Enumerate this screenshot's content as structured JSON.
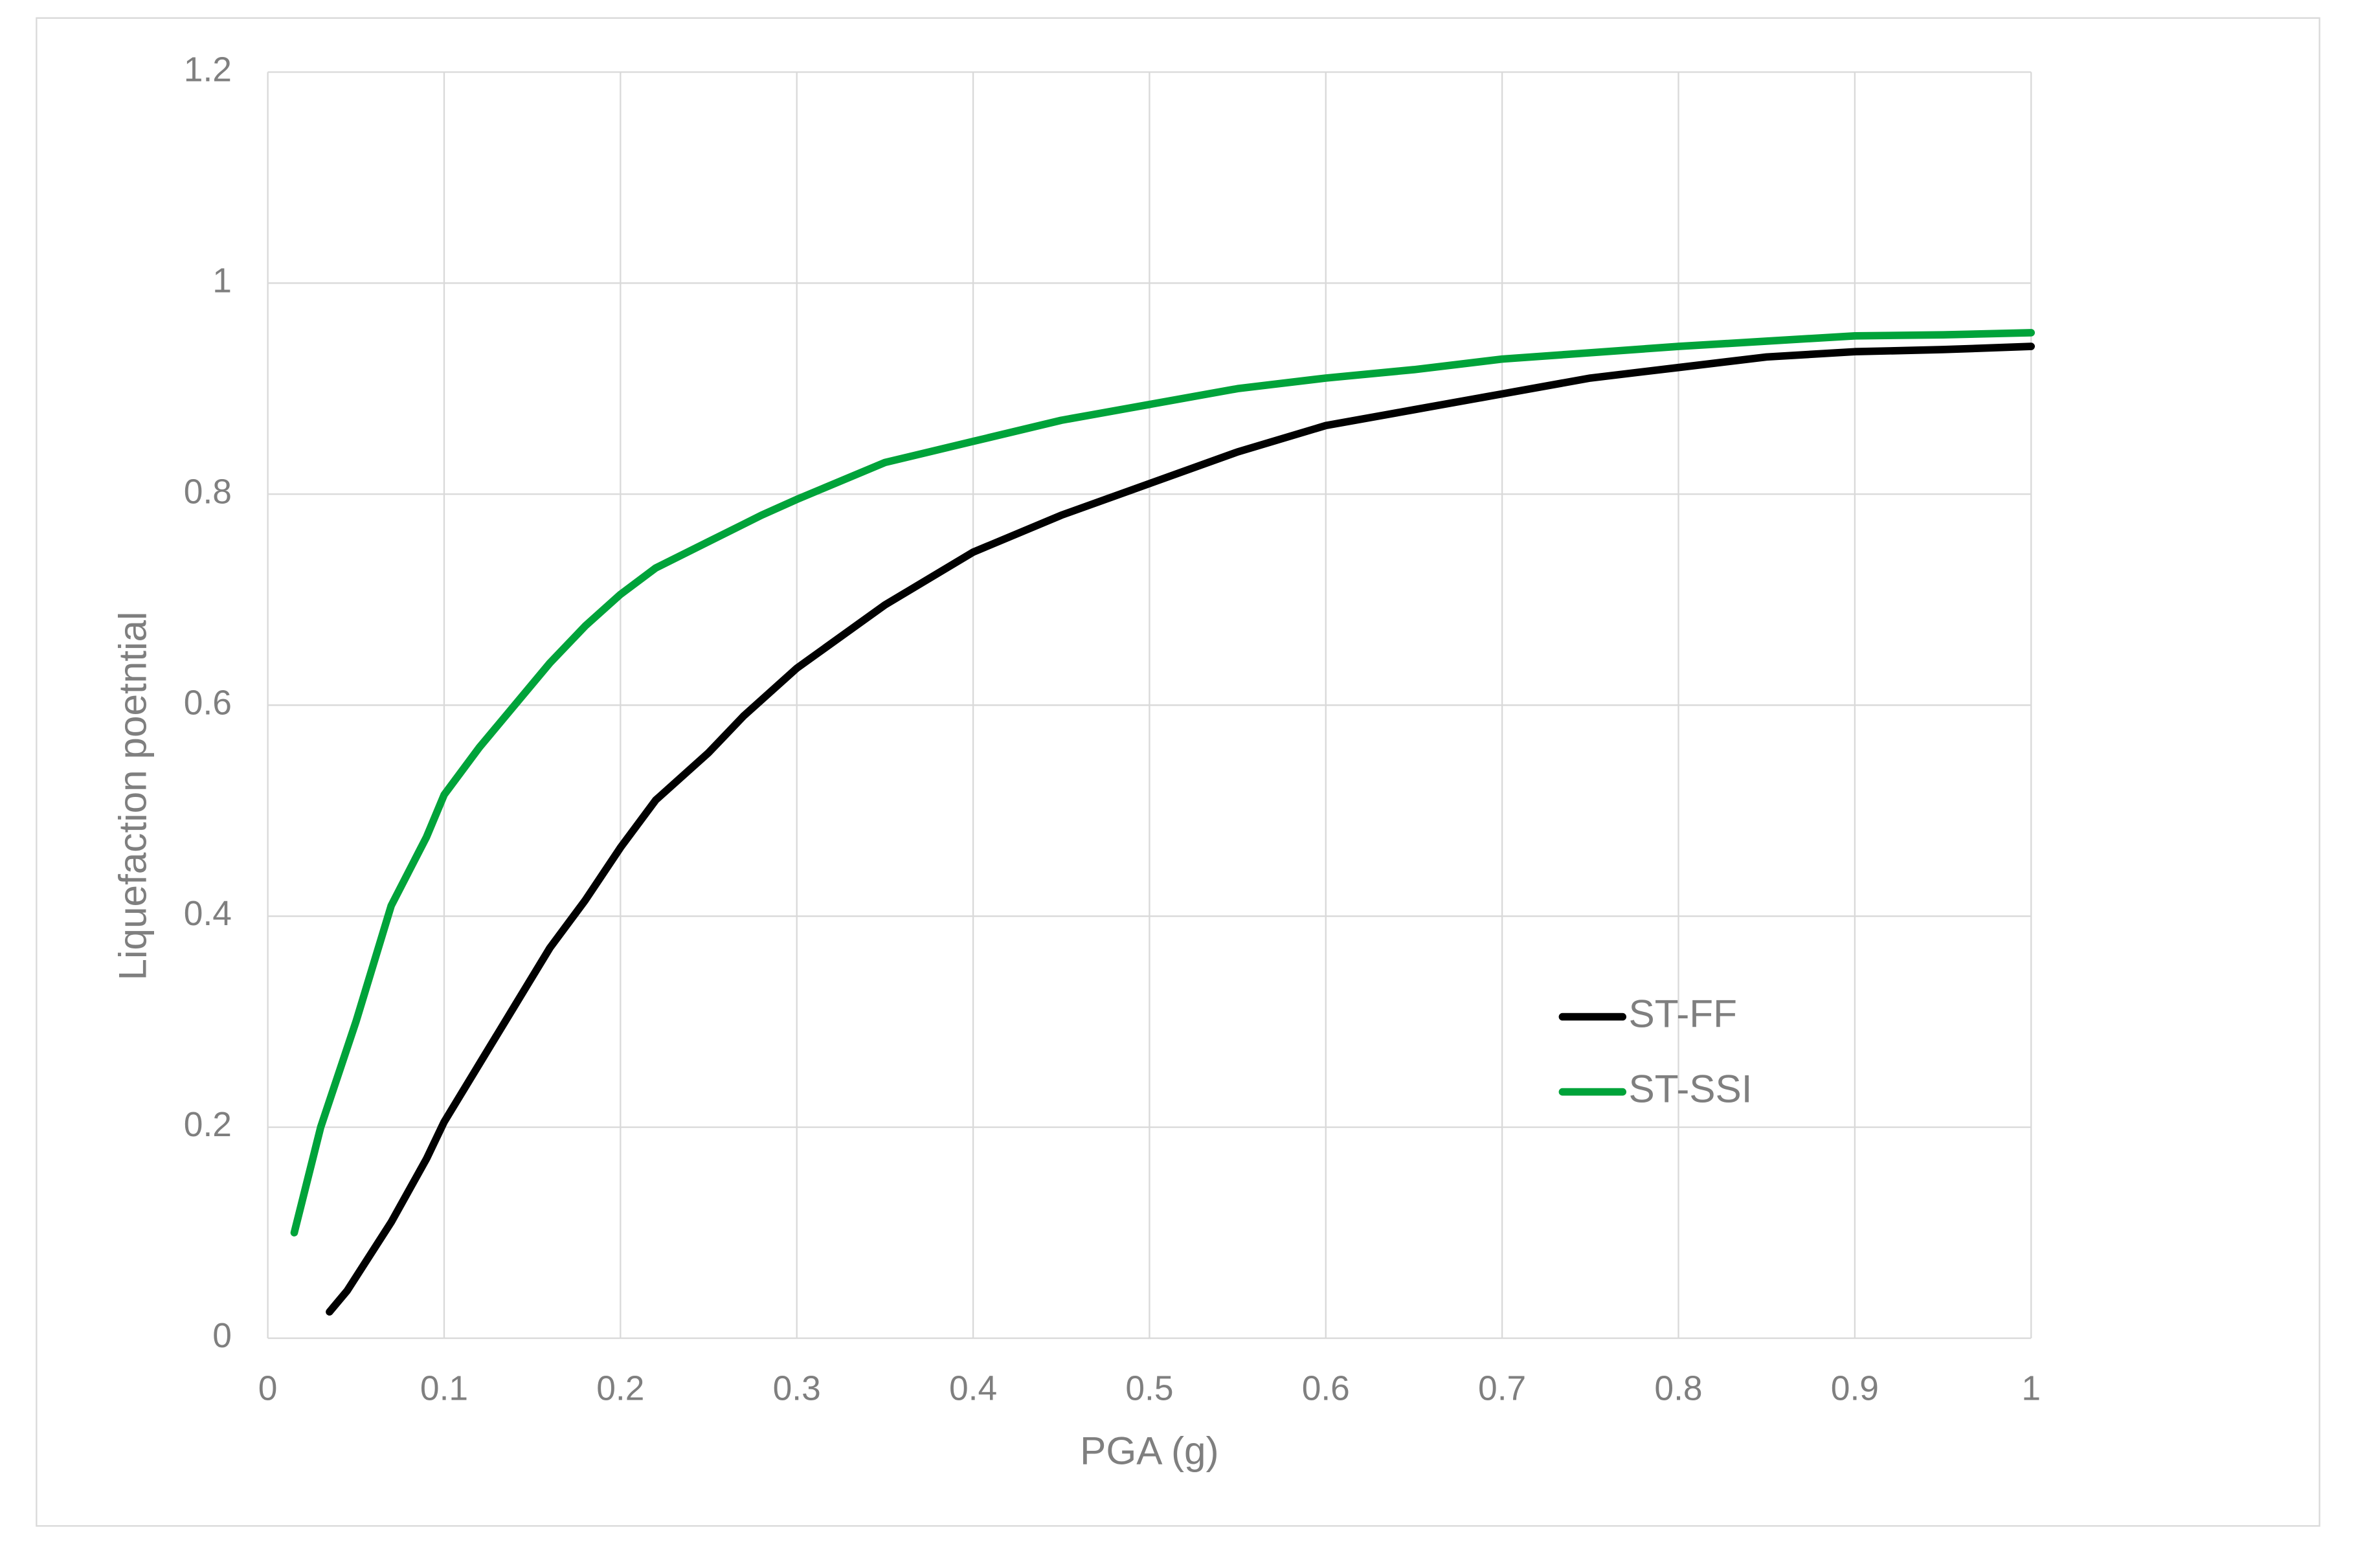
{
  "chart_data": {
    "type": "line",
    "x_label": "PGA (g)",
    "y_label": "Liquefaction poetntial",
    "xlim": [
      0,
      1
    ],
    "ylim": [
      0,
      1.2
    ],
    "xticks": [
      0,
      0.1,
      0.2,
      0.3,
      0.4,
      0.5,
      0.6,
      0.7,
      0.8,
      0.9,
      1
    ],
    "yticks": [
      0,
      0.2,
      0.4,
      0.6,
      0.8,
      1,
      1.2
    ],
    "grid": true,
    "legend": "lower right",
    "series": [
      {
        "name": "ST-FF",
        "color": "#000000",
        "x": [
          0.035,
          0.045,
          0.07,
          0.09,
          0.1,
          0.12,
          0.14,
          0.16,
          0.18,
          0.2,
          0.22,
          0.25,
          0.27,
          0.3,
          0.35,
          0.4,
          0.45,
          0.5,
          0.55,
          0.6,
          0.65,
          0.7,
          0.75,
          0.8,
          0.85,
          0.9,
          0.95,
          1.0
        ],
        "values": [
          0.025,
          0.045,
          0.11,
          0.17,
          0.205,
          0.26,
          0.315,
          0.37,
          0.415,
          0.465,
          0.51,
          0.555,
          0.59,
          0.635,
          0.695,
          0.745,
          0.78,
          0.81,
          0.84,
          0.865,
          0.88,
          0.895,
          0.91,
          0.92,
          0.93,
          0.935,
          0.937,
          0.94
        ]
      },
      {
        "name": "ST-SSI",
        "color": "#00a33a",
        "x": [
          0.015,
          0.03,
          0.05,
          0.07,
          0.09,
          0.1,
          0.12,
          0.14,
          0.16,
          0.18,
          0.2,
          0.22,
          0.25,
          0.28,
          0.3,
          0.35,
          0.4,
          0.45,
          0.5,
          0.55,
          0.6,
          0.65,
          0.7,
          0.75,
          0.8,
          0.85,
          0.9,
          0.95,
          1.0
        ],
        "values": [
          0.1,
          0.2,
          0.3,
          0.41,
          0.475,
          0.515,
          0.56,
          0.6,
          0.64,
          0.675,
          0.705,
          0.73,
          0.755,
          0.78,
          0.795,
          0.83,
          0.85,
          0.87,
          0.885,
          0.9,
          0.91,
          0.918,
          0.928,
          0.934,
          0.94,
          0.945,
          0.95,
          0.951,
          0.953
        ]
      }
    ]
  }
}
